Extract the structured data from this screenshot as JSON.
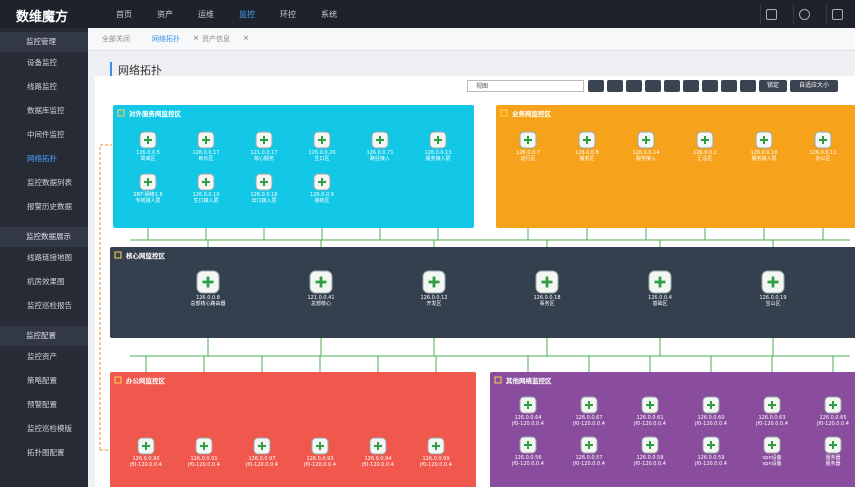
{
  "brand": "数维魔方",
  "top_nav": [
    "首页",
    "资产",
    "运维",
    "监控",
    "环控",
    "系统"
  ],
  "top_nav_active": 3,
  "sidebar": [
    {
      "title": "监控管理",
      "items": [
        "设备监控",
        "线路监控",
        "数据库监控",
        "中间件监控",
        "网络拓扑",
        "监控数据列表",
        "报警历史数据"
      ]
    },
    {
      "title": "监控数据展示",
      "items": [
        "线路链接地图",
        "机房效果图",
        "监控巡检报告"
      ]
    },
    {
      "title": "监控配置",
      "items": [
        "监控资产",
        "策略配置",
        "预警配置",
        "监控巡检模版",
        "拓扑图配置"
      ]
    }
  ],
  "sidebar_active": [
    0,
    4
  ],
  "tabs": [
    "全部关闭",
    "网络拓扑",
    "资产信息"
  ],
  "tab_active": 1,
  "page_title": "网络拓扑",
  "toolbar": {
    "select": "视图",
    "lock": "锁定",
    "fit": "自适应大小"
  },
  "zones": [
    {
      "title": "对外服务网监控区",
      "color": "#13c8e6",
      "rows": [
        [
          {
            "ip": "126.0.0.5",
            "name": "局域区"
          },
          {
            "ip": "126.0.0.17",
            "name": "新长区"
          },
          {
            "ip": "121.0.0.17",
            "name": "核心服务"
          },
          {
            "ip": "126.0.0.20",
            "name": "生口区"
          },
          {
            "ip": "126.0.0.71",
            "name": "路径接入"
          },
          {
            "ip": "126.0.0.13",
            "name": "服务接入层"
          }
        ],
        [
          {
            "ip": "SNT-网络1.8",
            "name": "专线接入层"
          },
          {
            "ip": "126.0.0.10",
            "name": "生口接入层"
          },
          {
            "ip": "126.0.0.16",
            "name": "出口接入层"
          },
          {
            "ip": "126.0.0.9",
            "name": "接房区"
          }
        ]
      ]
    },
    {
      "title": "业务网监控区",
      "color": "#f7a21b",
      "rows": [
        [
          {
            "ip": "126.0.0.7",
            "name": "运行区"
          },
          {
            "ip": "126.0.0.8",
            "name": "服务区"
          },
          {
            "ip": "126.0.0.14",
            "name": "服务接入"
          },
          {
            "ip": "126.0.0.2",
            "name": "汇总区"
          },
          {
            "ip": "126.0.0.10",
            "name": "服务接入层"
          },
          {
            "ip": "126.0.0.11",
            "name": "办公区"
          }
        ]
      ]
    },
    {
      "title": "核心网监控区",
      "color": "#34404d",
      "rows": [
        [
          {
            "ip": "126.0.0.8",
            "name": "总部核心路由器"
          },
          {
            "ip": "121.0.0.41",
            "name": "总部核心"
          },
          {
            "ip": "126.0.0.12",
            "name": "开发区"
          },
          {
            "ip": "126.0.0.18",
            "name": "事务区"
          },
          {
            "ip": "126.0.0.4",
            "name": "基础区"
          },
          {
            "ip": "126.0.0.19",
            "name": "宝山区"
          }
        ]
      ]
    },
    {
      "title": "办公网监控区",
      "color": "#f0584e",
      "rows": [
        [
          {
            "ip": "126.0.0.90",
            "name": "jf0-120.0.0.4"
          },
          {
            "ip": "126.0.0.91",
            "name": "jf0-120.0.0.4"
          },
          {
            "ip": "126.0.0.97",
            "name": "jf0-120.0.0.4"
          },
          {
            "ip": "126.0.0.93",
            "name": "jf0-120.0.0.4"
          },
          {
            "ip": "126.0.0.94",
            "name": "jf0-120.0.0.4"
          },
          {
            "ip": "126.0.0.99",
            "name": "jf0-120.0.0.4"
          }
        ]
      ]
    },
    {
      "title": "其他网络监控区",
      "color": "#8a4c9c",
      "rows": [
        [
          {
            "ip": "126.0.0.64",
            "name": "jf0-120.0.0.4"
          },
          {
            "ip": "126.0.0.67",
            "name": "jf0-120.0.0.4"
          },
          {
            "ip": "126.0.0.61",
            "name": "jf0-120.0.0.4"
          },
          {
            "ip": "126.0.0.60",
            "name": "jf0-120.0.0.4"
          },
          {
            "ip": "126.0.0.63",
            "name": "jf0-120.0.0.4"
          },
          {
            "ip": "126.0.0.65",
            "name": "jf0-120.0.0.4"
          }
        ],
        [
          {
            "ip": "126.0.0.56",
            "name": "jf0-120.0.0.4"
          },
          {
            "ip": "126.0.0.57",
            "name": "jf0-120.0.0.4"
          },
          {
            "ip": "126.0.0.58",
            "name": "jf0-120.0.0.4"
          },
          {
            "ip": "126.0.0.59",
            "name": "jf0-120.0.0.4"
          },
          {
            "ip": "vpn设备",
            "name": "vpn设备"
          },
          {
            "ip": "服务器",
            "name": "服务器"
          }
        ]
      ]
    }
  ]
}
